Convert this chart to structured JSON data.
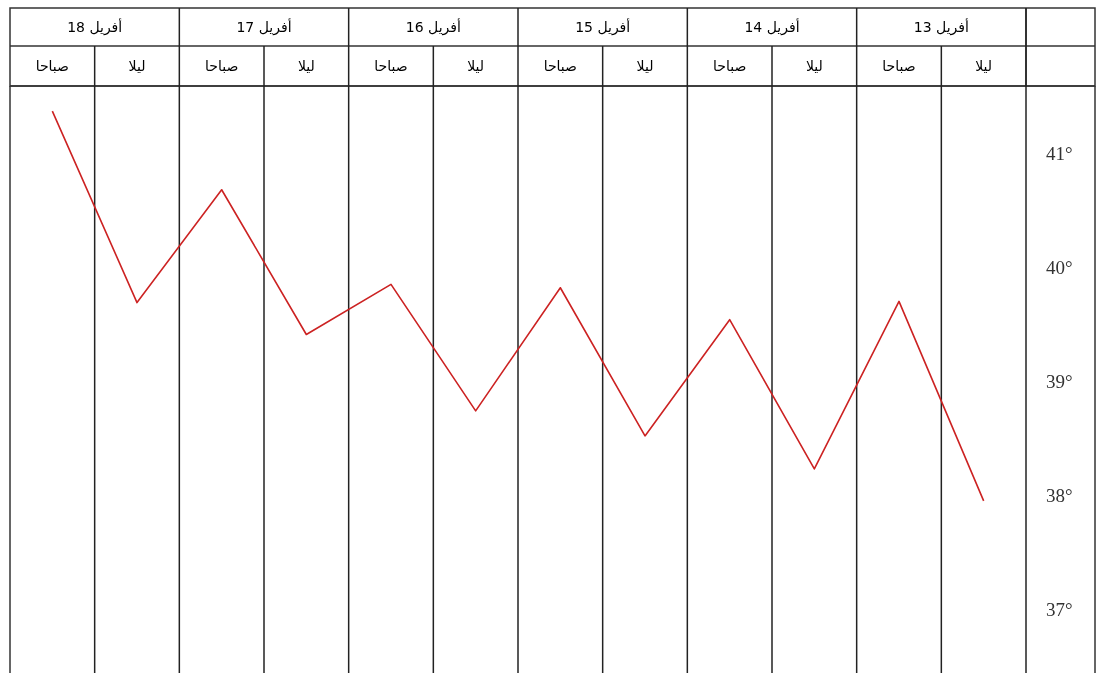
{
  "chart_data": {
    "type": "line",
    "categories": [
      "صباحا",
      "ليلا",
      "صباحا",
      "ليلا",
      "صباحا",
      "ليلا",
      "صباحا",
      "ليلا",
      "صباحا",
      "ليلا",
      "صباحا",
      "ليلا"
    ],
    "annotations": [
      "18 أفريل",
      "17 أفريل",
      "16 أفريل",
      "15 أفريل",
      "14 أفريل",
      "13 أفريل"
    ],
    "series": [
      {
        "color": "#cc2222",
        "values": [
          41.38,
          39.7,
          40.69,
          39.42,
          39.86,
          38.75,
          39.83,
          38.53,
          39.55,
          38.24,
          39.71,
          37.96
        ]
      }
    ],
    "ylim": [
      36.45,
      41.6
    ],
    "yticks": [
      {
        "value": 37,
        "label": "37°"
      },
      {
        "value": 38,
        "label": "38°"
      },
      {
        "value": 39,
        "label": "39°"
      },
      {
        "value": 40,
        "label": "40°"
      },
      {
        "value": 41,
        "label": "41°"
      }
    ],
    "grid": "x",
    "marker": "none",
    "line_style": "solid"
  }
}
